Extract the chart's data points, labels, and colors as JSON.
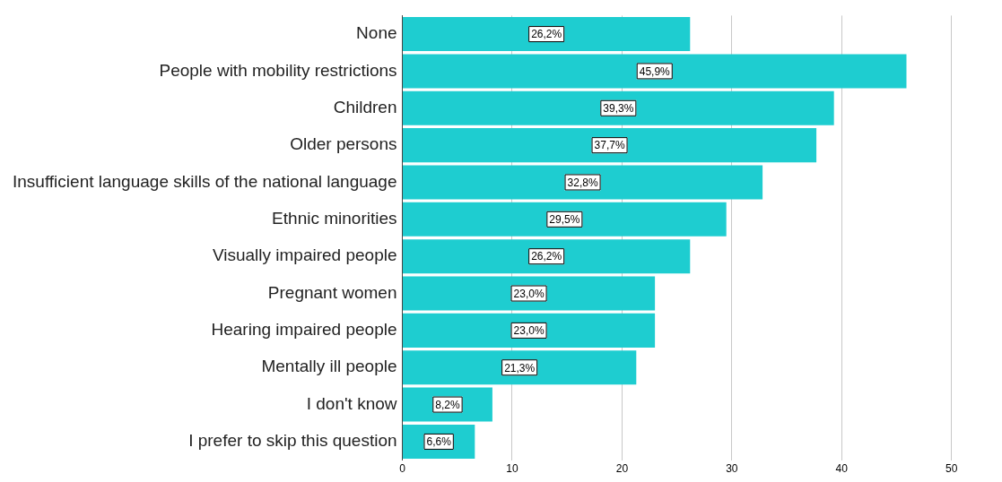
{
  "chart_data": {
    "type": "bar",
    "orientation": "horizontal",
    "categories": [
      "None",
      "People with mobility restrictions",
      "Children",
      "Older persons",
      "Insufficient language skills of the national language",
      "Ethnic minorities",
      "Visually impaired people",
      "Pregnant women",
      "Hearing impaired people",
      "Mentally ill people",
      "I don't know",
      "I prefer to skip this question"
    ],
    "values": [
      26.2,
      45.9,
      39.3,
      37.7,
      32.8,
      29.5,
      26.2,
      23.0,
      23.0,
      21.3,
      8.2,
      6.6
    ],
    "value_labels": [
      "26,2%",
      "45,9%",
      "39,3%",
      "37,7%",
      "32,8%",
      "29,5%",
      "26,2%",
      "23,0%",
      "23,0%",
      "21,3%",
      "8,2%",
      "6,6%"
    ],
    "color": "#1ecdd0",
    "xlim": [
      0,
      54.6
    ],
    "xticks": [
      0,
      10,
      20,
      30,
      40,
      50
    ],
    "grid": "x",
    "legend": false
  }
}
